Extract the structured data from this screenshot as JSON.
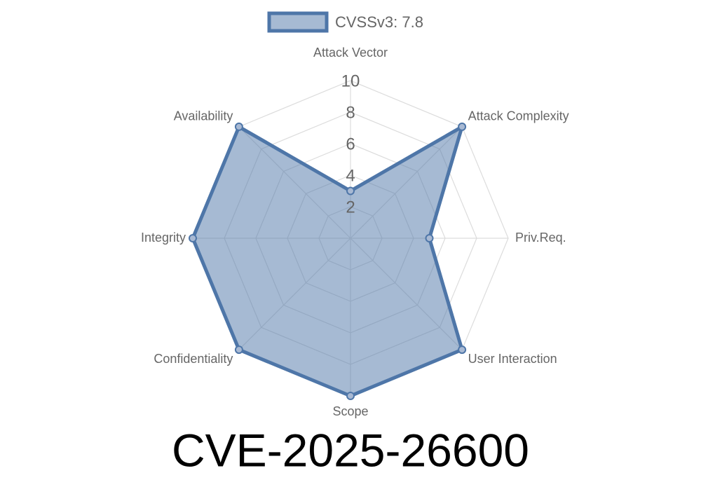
{
  "chart_data": {
    "type": "radar",
    "title": "CVE-2025-26600",
    "categories": [
      "Attack Vector",
      "Attack Complexity",
      "Priv.Req.",
      "User Interaction",
      "Scope",
      "Confidentiality",
      "Integrity",
      "Availability"
    ],
    "series": [
      {
        "name": "CVSSv3: 7.8",
        "color": "#4e76a8",
        "values": [
          3,
          10,
          5,
          10,
          10,
          10,
          10,
          10
        ]
      }
    ],
    "rlim": [
      0,
      10
    ],
    "rticks": [
      2,
      4,
      6,
      8,
      10
    ],
    "grid": true,
    "legend": "top"
  }
}
